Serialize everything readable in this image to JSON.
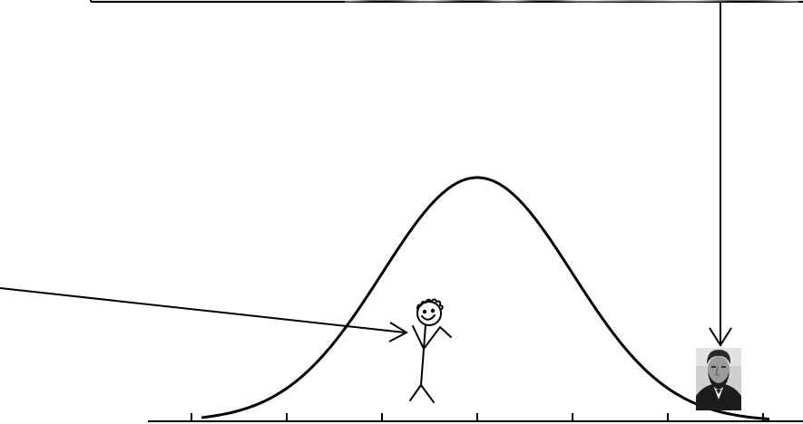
{
  "diagram": {
    "curve": "normal-distribution",
    "axis_ticks": 7,
    "line_color": "#000000",
    "background": "#ffffff",
    "figures": [
      {
        "name": "stick-figure",
        "kind": "hand-drawn stick person, smiling"
      },
      {
        "name": "portrait",
        "kind": "black-and-white photo portrait of a bearded man in a dark suit"
      }
    ],
    "arrows": [
      {
        "name": "left-arrow",
        "points_to": "stick-figure"
      },
      {
        "name": "top-arrow",
        "points_to": "portrait"
      }
    ]
  }
}
